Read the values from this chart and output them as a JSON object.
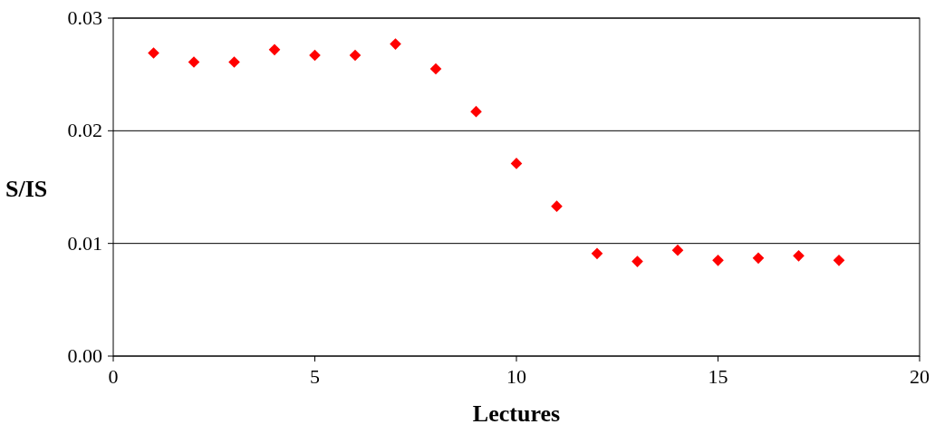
{
  "chart_data": {
    "type": "scatter",
    "xlabel": "Lectures",
    "ylabel": "S/IS",
    "x": [
      1,
      2,
      3,
      4,
      5,
      6,
      7,
      8,
      9,
      10,
      11,
      12,
      13,
      14,
      15,
      16,
      17,
      18
    ],
    "series": [
      {
        "color": "#ff0000",
        "values": [
          0.0269,
          0.0261,
          0.0261,
          0.0272,
          0.0267,
          0.0267,
          0.0277,
          0.0255,
          0.0217,
          0.0171,
          0.0133,
          0.0091,
          0.0084,
          0.0094,
          0.0085,
          0.0087,
          0.0089,
          0.0085
        ]
      }
    ],
    "xlim": [
      0,
      20
    ],
    "xticks": [
      0,
      5,
      10,
      15,
      20
    ],
    "ylim": [
      0,
      0.03
    ],
    "yticks": [
      {
        "value": 0,
        "label": "0.00"
      },
      0.01,
      0.02,
      0.03
    ],
    "grid": "y",
    "marker": "diamond"
  }
}
